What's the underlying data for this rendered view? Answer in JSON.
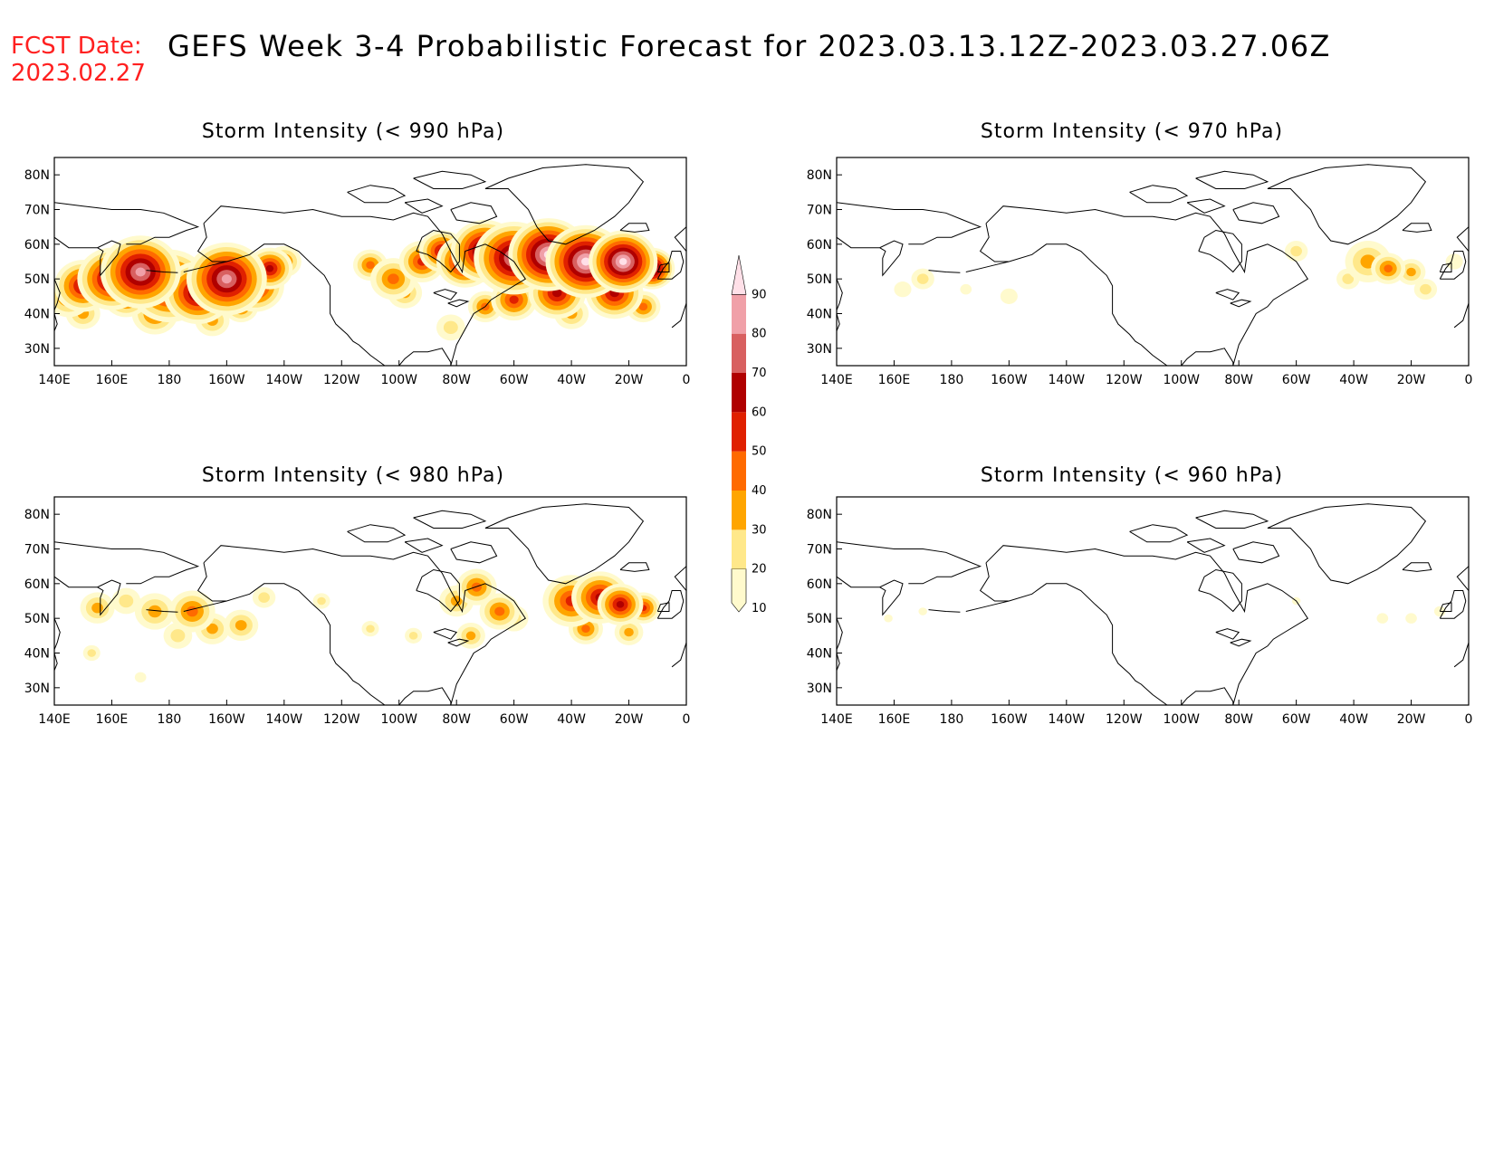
{
  "header": {
    "fcst_label": "FCST Date:",
    "fcst_date": "2023.02.27",
    "title": "GEFS Week 3-4 Probabilistic Forecast for 2023.03.13.12Z-2023.03.27.06Z"
  },
  "panels": [
    {
      "id": "p990",
      "title": "Storm Intensity (< 990 hPa)"
    },
    {
      "id": "p970",
      "title": "Storm Intensity (< 970 hPa)"
    },
    {
      "id": "p980",
      "title": "Storm Intensity (< 980 hPa)"
    },
    {
      "id": "p960",
      "title": "Storm Intensity (< 960 hPa)"
    }
  ],
  "axes": {
    "lon_ticks": [
      "140E",
      "160E",
      "180",
      "160W",
      "140W",
      "120W",
      "100W",
      "80W",
      "60W",
      "40W",
      "20W",
      "0"
    ],
    "lat_ticks": [
      "80N",
      "70N",
      "60N",
      "50N",
      "40N",
      "30N"
    ]
  },
  "colorbar": {
    "levels": [
      "10",
      "20",
      "30",
      "40",
      "50",
      "60",
      "70",
      "80",
      "90"
    ],
    "colors": [
      "#fffacd",
      "#ffe88a",
      "#ffa500",
      "#ff6a00",
      "#e02000",
      "#b00000",
      "#d86060",
      "#f0a0a8",
      "#ffe0e8"
    ]
  },
  "chart_data": [
    {
      "type": "heatmap",
      "title": "Storm Intensity (< 990 hPa)",
      "ylim_lat": [
        25,
        85
      ],
      "xlim_lon": [
        140,
        360
      ],
      "probability_percent_max": 90,
      "dominant_regions": [
        "North Pacific 35N-60N",
        "North Atlantic 40N-65N"
      ]
    },
    {
      "type": "heatmap",
      "title": "Storm Intensity (< 970 hPa)",
      "ylim_lat": [
        25,
        85
      ],
      "xlim_lon": [
        140,
        360
      ],
      "probability_percent_max": 40,
      "dominant_regions": [
        "Northeast Atlantic 45N-60N"
      ]
    },
    {
      "type": "heatmap",
      "title": "Storm Intensity (< 980 hPa)",
      "ylim_lat": [
        25,
        85
      ],
      "xlim_lon": [
        140,
        360
      ],
      "probability_percent_max": 70,
      "dominant_regions": [
        "North Pacific 40N-60N",
        "North Atlantic 40N-65N"
      ]
    },
    {
      "type": "heatmap",
      "title": "Storm Intensity (< 960 hPa)",
      "ylim_lat": [
        25,
        85
      ],
      "xlim_lon": [
        140,
        360
      ],
      "probability_percent_max": 20,
      "dominant_regions": [
        "scattered Atlantic"
      ]
    }
  ]
}
